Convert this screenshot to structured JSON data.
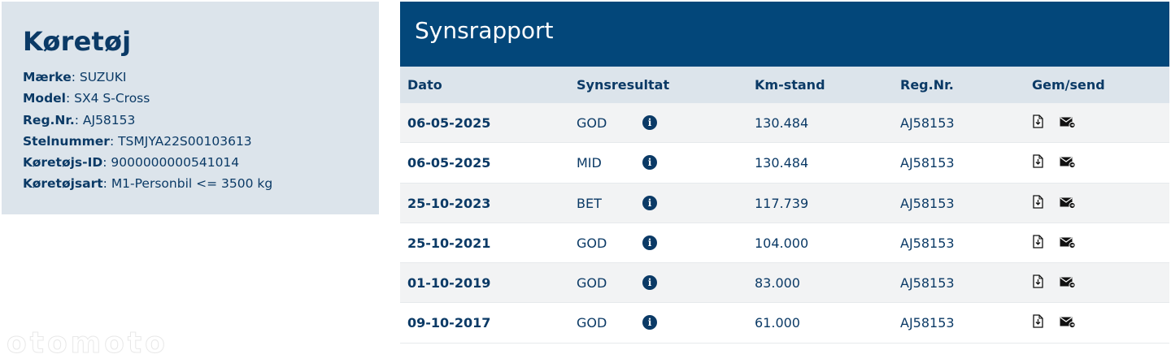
{
  "vehicle": {
    "title": "Køretøj",
    "rows": [
      {
        "label": "Mærke",
        "value": "SUZUKI"
      },
      {
        "label": "Model",
        "value": "SX4 S-Cross"
      },
      {
        "label": "Reg.Nr.",
        "value": "AJ58153"
      },
      {
        "label": "Stelnummer",
        "value": "TSMJYA22S00103613"
      },
      {
        "label": "Køretøjs-ID",
        "value": "9000000000541014"
      },
      {
        "label": "Køretøjsart",
        "value": "M1-Personbil <= 3500 kg"
      }
    ]
  },
  "report": {
    "title": "Synsrapport",
    "columns": [
      "Dato",
      "Synsresultat",
      "Km-stand",
      "Reg.Nr.",
      "Gem/send"
    ],
    "rows": [
      {
        "date": "06-05-2025",
        "result": "GOD",
        "km": "130.484",
        "reg": "AJ58153"
      },
      {
        "date": "06-05-2025",
        "result": "MID",
        "km": "130.484",
        "reg": "AJ58153"
      },
      {
        "date": "25-10-2023",
        "result": "BET",
        "km": "117.739",
        "reg": "AJ58153"
      },
      {
        "date": "25-10-2021",
        "result": "GOD",
        "km": "104.000",
        "reg": "AJ58153"
      },
      {
        "date": "01-10-2019",
        "result": "GOD",
        "km": "83.000",
        "reg": "AJ58153"
      },
      {
        "date": "09-10-2017",
        "result": "GOD",
        "km": "61.000",
        "reg": "AJ58153"
      }
    ],
    "info_glyph": "i"
  },
  "icons": {
    "info": "info-icon",
    "download": "download-document-icon",
    "send": "send-mail-icon"
  },
  "colors": {
    "brand": "#03477a",
    "text": "#0b3a66",
    "panel": "#dce4eb"
  },
  "watermark": "otomoto"
}
